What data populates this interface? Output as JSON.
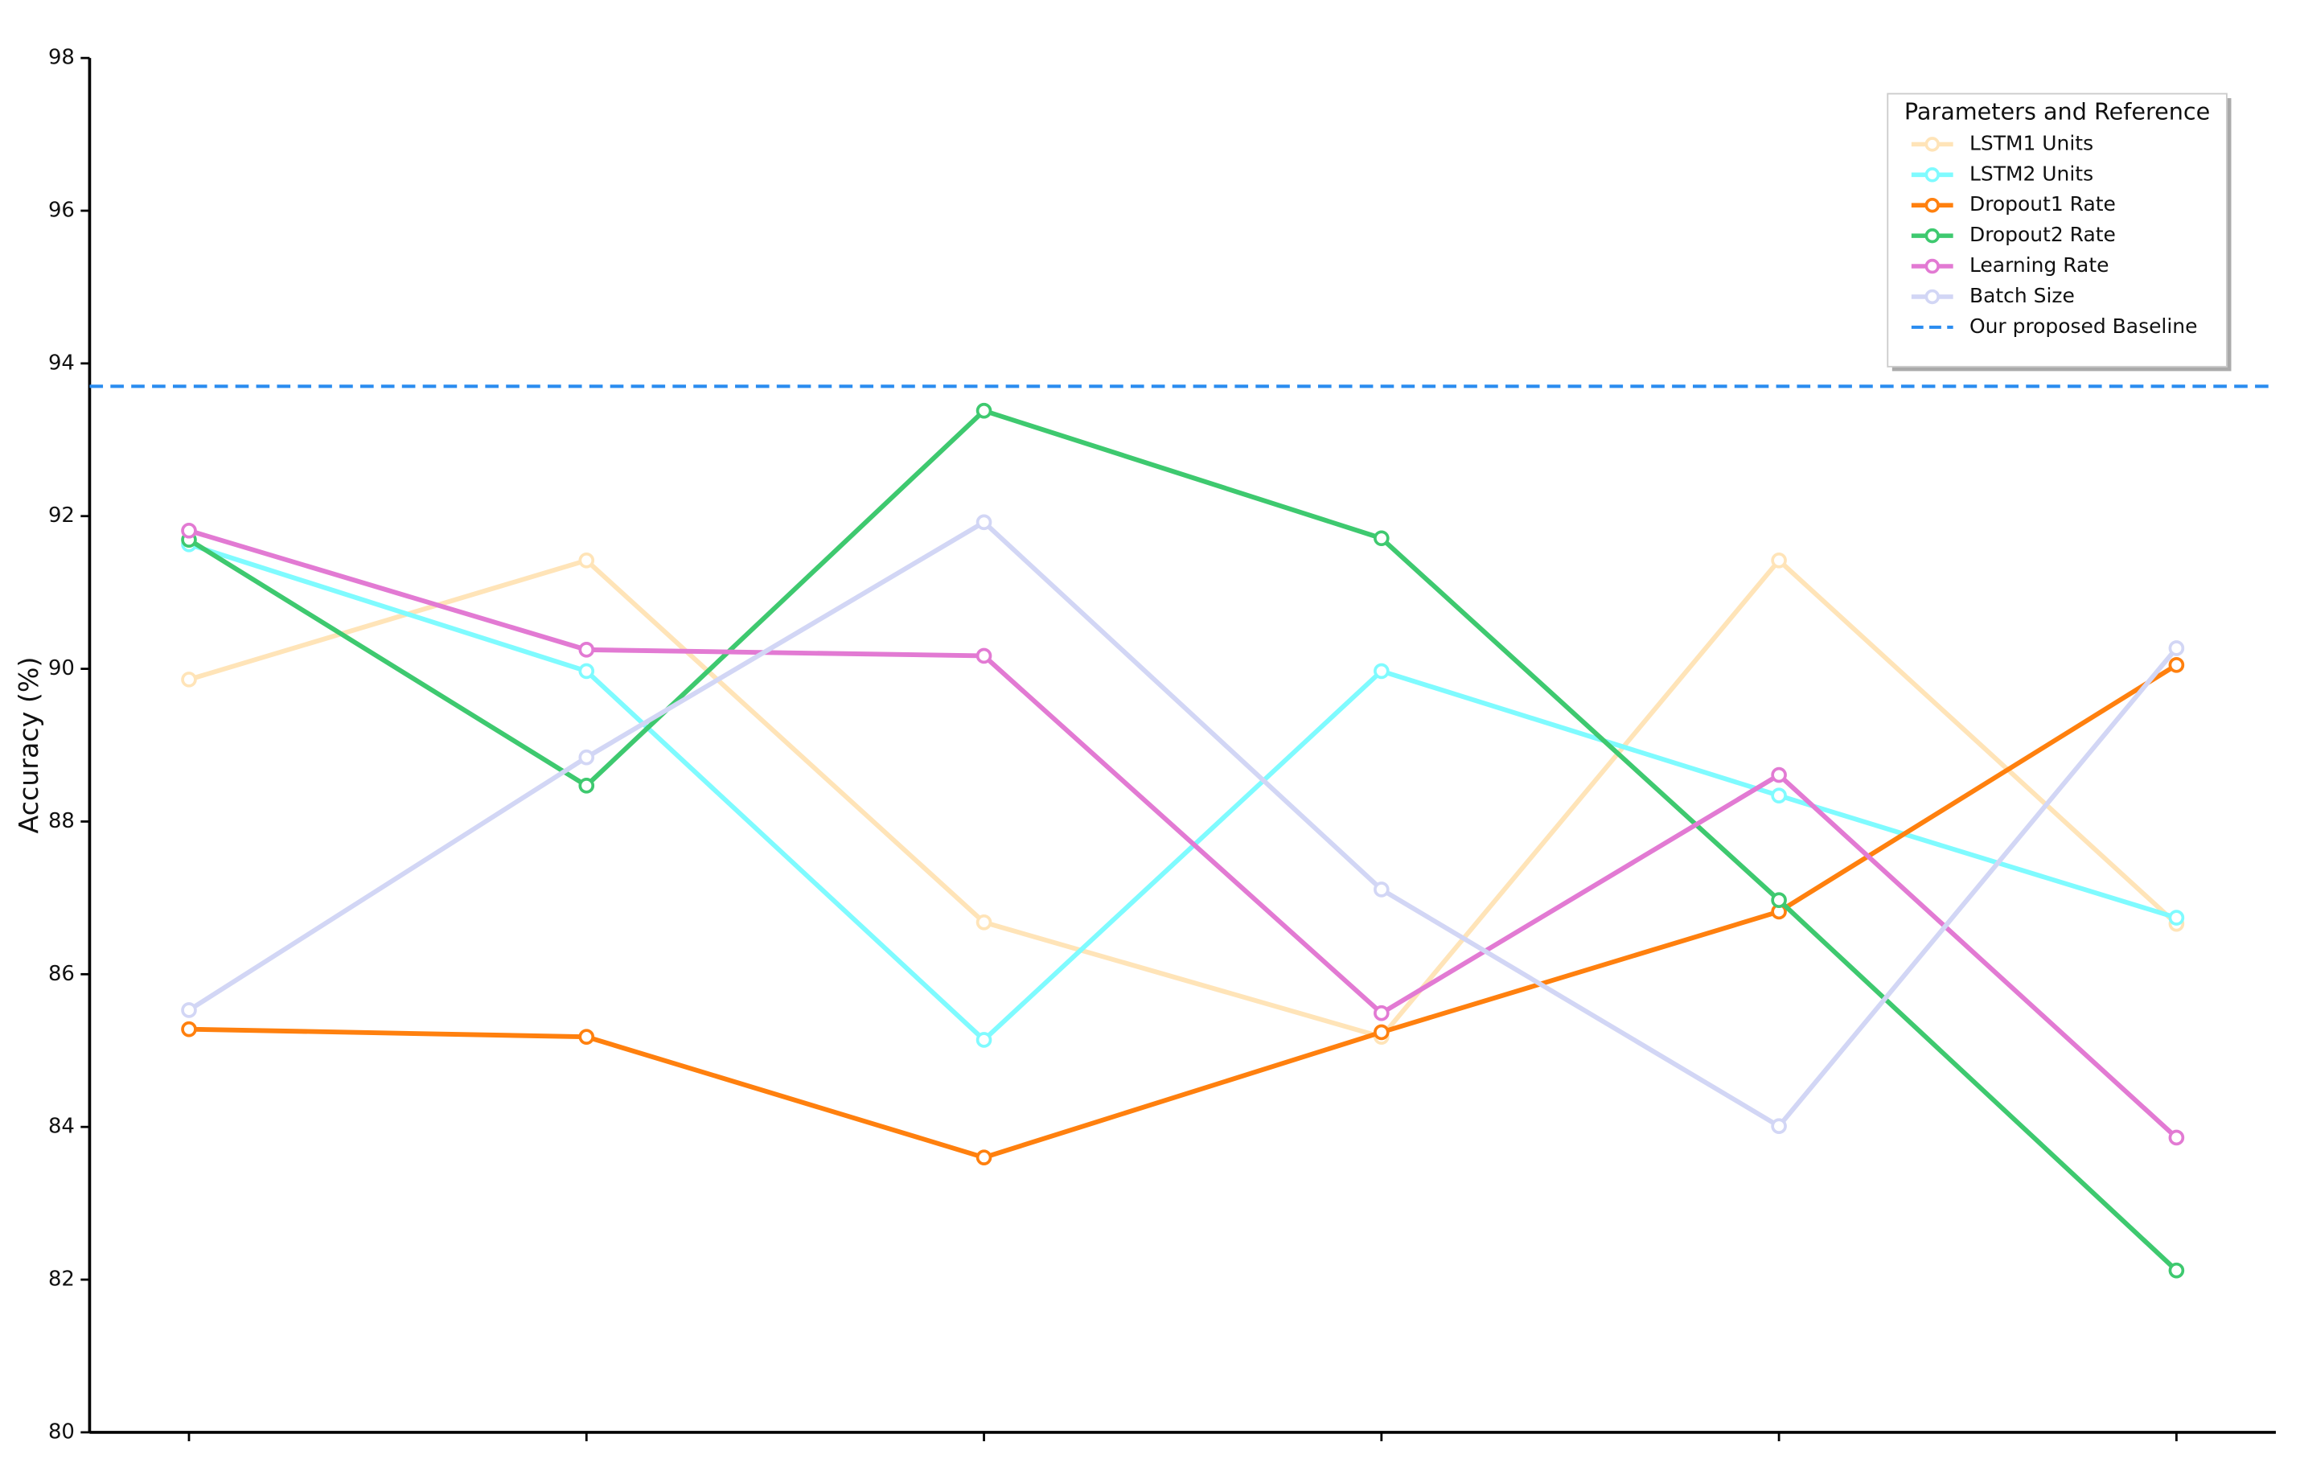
{
  "chart_data": {
    "type": "line",
    "ylabel": "Accuracy (%)",
    "legend_title": "Parameters and Reference",
    "legend_position": "upper right",
    "categories": [
      null,
      null,
      null,
      null,
      null,
      null
    ],
    "ylim": [
      80,
      98
    ],
    "yticks": [
      80,
      82,
      84,
      86,
      88,
      90,
      92,
      94,
      96,
      98
    ],
    "series": [
      {
        "name": "LSTM1 Units",
        "color": "#ffe4b8",
        "values": [
          89.86,
          91.42,
          86.68,
          85.18,
          91.42,
          86.66
        ]
      },
      {
        "name": "LSTM2 Units",
        "color": "#7ffbff",
        "values": [
          91.63,
          89.97,
          85.14,
          89.97,
          88.34,
          86.74
        ]
      },
      {
        "name": "Dropout1 Rate",
        "color": "#ff800e",
        "values": [
          85.28,
          85.18,
          83.6,
          85.24,
          86.82,
          90.05
        ]
      },
      {
        "name": "Dropout2 Rate",
        "color": "#3ec96f",
        "values": [
          91.69,
          88.47,
          93.38,
          91.71,
          86.97,
          82.12
        ]
      },
      {
        "name": "Learning Rate",
        "color": "#e27ad3",
        "values": [
          91.81,
          90.25,
          90.17,
          85.49,
          88.61,
          83.86
        ]
      },
      {
        "name": "Batch Size",
        "color": "#d2d6f5",
        "values": [
          85.53,
          88.84,
          91.92,
          87.11,
          84.01,
          90.27
        ]
      }
    ],
    "reference_lines": [
      {
        "name": "Our proposed Baseline",
        "color": "#2a8cf0",
        "value": 93.7
      }
    ]
  }
}
